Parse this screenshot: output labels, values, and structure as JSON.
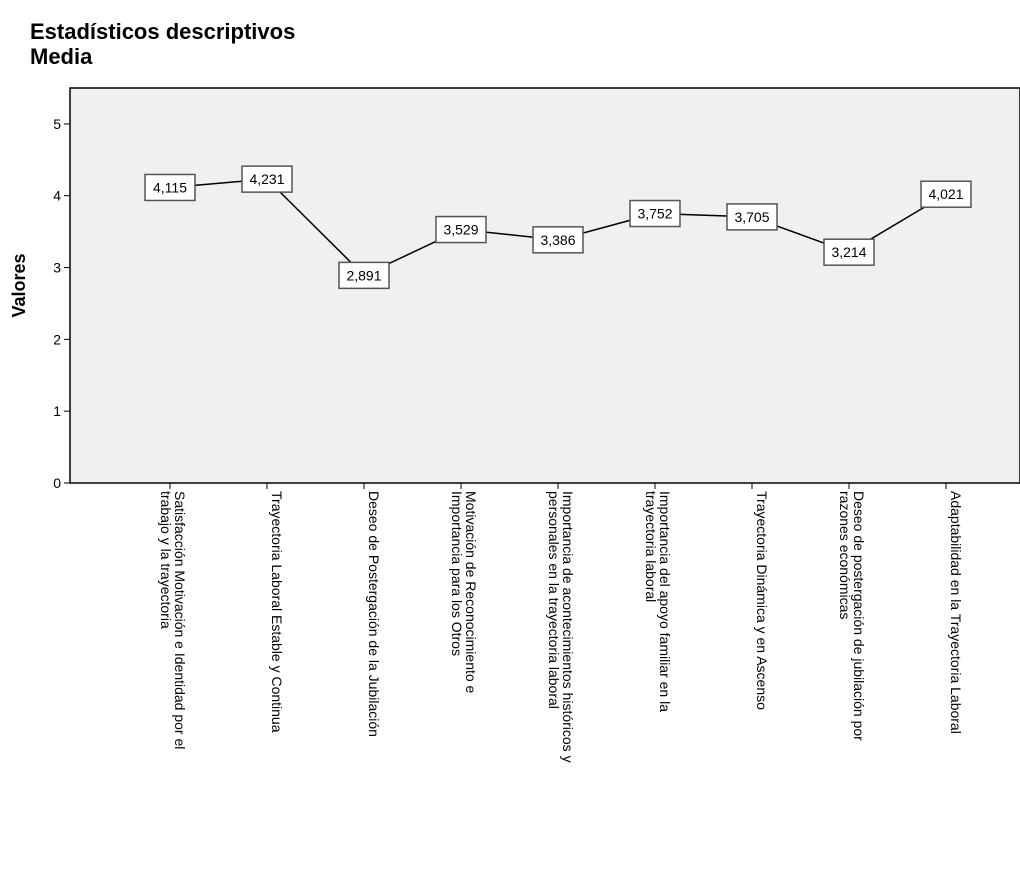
{
  "header": {
    "title": "Estadísticos descriptivos",
    "subtitle": "Media"
  },
  "chart_data": {
    "type": "line",
    "title": "Estadísticos descriptivos",
    "subtitle": "Media",
    "xlabel": "",
    "ylabel": "Valores",
    "ylim": [
      0,
      5.5
    ],
    "yticks": [
      "0",
      "1",
      "2",
      "3",
      "4",
      "5"
    ],
    "grid": false,
    "background": "#f0f0f0",
    "line_color": "#000000",
    "categories": [
      [
        "Satisfacción Motivación e Identidad por el",
        "trabajo y la trayectoria"
      ],
      [
        "Trayectoria Laboral Estable y Continua"
      ],
      [
        "Deseo de Postergación de la Jubilación"
      ],
      [
        "Motivación de Reconocimiento e",
        "Importancia para los Otros"
      ],
      [
        "Importancia de acontecimientos históricos y",
        "personales en la trayectoria laboral"
      ],
      [
        "Importancia del apoyo familiar en la",
        "trayectoria laboral"
      ],
      [
        "Trayectoria Dinámica y en Ascenso"
      ],
      [
        "Deseo de postergación de jubilación por",
        "razones económicas"
      ],
      [
        "Adaptabilidad en la Trayectoria Laboral"
      ]
    ],
    "values": [
      4.115,
      4.231,
      2.891,
      3.529,
      3.386,
      3.752,
      3.705,
      3.214,
      4.021
    ],
    "data_labels": [
      "4,115",
      "4,231",
      "2,891",
      "3,529",
      "3,386",
      "3,752",
      "3,705",
      "3,214",
      "4,021"
    ]
  }
}
